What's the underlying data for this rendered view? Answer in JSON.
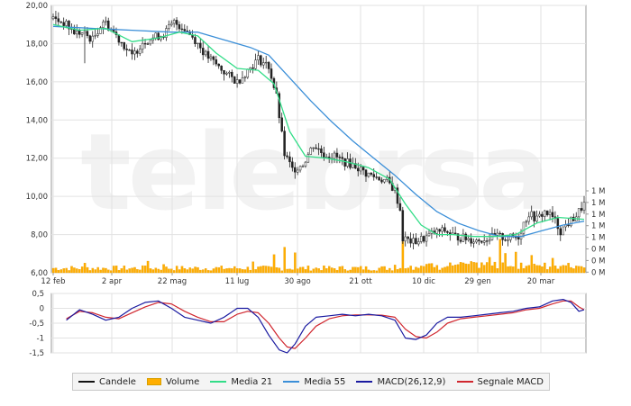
{
  "chart_data": [
    {
      "type": "candlestick",
      "title": "",
      "ylim": [
        6,
        20
      ],
      "yticks": [
        "20,00",
        "18,00",
        "16,00",
        "14,00",
        "12,00",
        "10,00",
        "8,00",
        "6,00"
      ],
      "xticks": [
        "12 feb",
        "2 apr",
        "22 mag",
        "11 lug",
        "30 ago",
        "21 ott",
        "10 dic",
        "29 gen",
        "20 mar"
      ],
      "volume_ticks": [
        "1 M",
        "1 M",
        "1 M",
        "1 M",
        "1 M",
        "0 M",
        "0 M",
        "0 M"
      ],
      "close_trend": [
        [
          0,
          19.3
        ],
        [
          4,
          19.1
        ],
        [
          8,
          18.6
        ],
        [
          12,
          18.5
        ],
        [
          15,
          18.2
        ],
        [
          19,
          19.2
        ],
        [
          23,
          18.6
        ],
        [
          27,
          17.9
        ],
        [
          30,
          17.3
        ],
        [
          34,
          18.1
        ],
        [
          38,
          18.3
        ],
        [
          42,
          18.5
        ],
        [
          46,
          19.1
        ],
        [
          50,
          18.8
        ],
        [
          54,
          18.2
        ],
        [
          58,
          17.4
        ],
        [
          62,
          16.9
        ],
        [
          66,
          16.4
        ],
        [
          70,
          16.0
        ],
        [
          74,
          16.6
        ],
        [
          78,
          17.2
        ],
        [
          82,
          16.8
        ],
        [
          85,
          15.2
        ],
        [
          88,
          12.2
        ],
        [
          91,
          11.4
        ],
        [
          95,
          11.7
        ],
        [
          99,
          12.7
        ],
        [
          103,
          12.2
        ],
        [
          107,
          12.1
        ],
        [
          111,
          11.8
        ],
        [
          115,
          11.6
        ],
        [
          119,
          11.2
        ],
        [
          123,
          11.0
        ],
        [
          127,
          10.8
        ],
        [
          130,
          10.3
        ],
        [
          132,
          9.3
        ],
        [
          133,
          7.8
        ],
        [
          137,
          7.6
        ],
        [
          141,
          7.8
        ],
        [
          145,
          8.1
        ],
        [
          149,
          8.2
        ],
        [
          153,
          7.9
        ],
        [
          157,
          7.8
        ],
        [
          161,
          7.7
        ],
        [
          165,
          7.8
        ],
        [
          169,
          7.9
        ],
        [
          173,
          7.8
        ],
        [
          177,
          7.9
        ],
        [
          179,
          8.6
        ],
        [
          181,
          9.1
        ],
        [
          184,
          8.8
        ],
        [
          187,
          9.2
        ],
        [
          190,
          8.9
        ],
        [
          193,
          8.2
        ],
        [
          196,
          8.6
        ],
        [
          199,
          9.0
        ],
        [
          202,
          9.6
        ]
      ],
      "media21": [
        [
          0,
          19.0
        ],
        [
          10,
          18.7
        ],
        [
          20,
          18.8
        ],
        [
          30,
          18.1
        ],
        [
          40,
          18.3
        ],
        [
          48,
          18.6
        ],
        [
          55,
          18.4
        ],
        [
          62,
          17.5
        ],
        [
          70,
          16.7
        ],
        [
          78,
          16.6
        ],
        [
          84,
          15.9
        ],
        [
          90,
          13.4
        ],
        [
          96,
          12.1
        ],
        [
          104,
          12.0
        ],
        [
          112,
          11.8
        ],
        [
          120,
          11.5
        ],
        [
          128,
          10.9
        ],
        [
          134,
          9.6
        ],
        [
          140,
          8.5
        ],
        [
          146,
          8.0
        ],
        [
          152,
          8.0
        ],
        [
          160,
          7.9
        ],
        [
          168,
          7.9
        ],
        [
          176,
          8.0
        ],
        [
          184,
          8.6
        ],
        [
          192,
          8.9
        ],
        [
          202,
          8.8
        ]
      ],
      "media55": [
        [
          0,
          18.9
        ],
        [
          15,
          18.8
        ],
        [
          30,
          18.7
        ],
        [
          45,
          18.6
        ],
        [
          55,
          18.6
        ],
        [
          65,
          18.2
        ],
        [
          75,
          17.8
        ],
        [
          82,
          17.4
        ],
        [
          90,
          16.2
        ],
        [
          98,
          15.0
        ],
        [
          106,
          13.9
        ],
        [
          114,
          12.9
        ],
        [
          122,
          12.0
        ],
        [
          130,
          11.1
        ],
        [
          138,
          10.1
        ],
        [
          146,
          9.2
        ],
        [
          154,
          8.6
        ],
        [
          162,
          8.2
        ],
        [
          170,
          7.9
        ],
        [
          178,
          7.9
        ],
        [
          186,
          8.2
        ],
        [
          194,
          8.5
        ],
        [
          202,
          8.7
        ]
      ],
      "volume_spikes": [
        [
          12,
          3
        ],
        [
          34,
          2.2
        ],
        [
          36,
          3.6
        ],
        [
          42,
          2.6
        ],
        [
          76,
          3.4
        ],
        [
          84,
          5.6
        ],
        [
          88,
          7.9
        ],
        [
          92,
          6.2
        ],
        [
          130,
          2.4
        ],
        [
          133,
          9.6
        ],
        [
          166,
          4.8
        ],
        [
          170,
          10.4
        ],
        [
          172,
          6.0
        ],
        [
          176,
          6.4
        ],
        [
          182,
          5.4
        ],
        [
          190,
          4.5
        ],
        [
          196,
          3.0
        ]
      ]
    },
    {
      "type": "line",
      "ylim": [
        -1.5,
        0.5
      ],
      "yticks": [
        "0,5",
        "0",
        "-0,5",
        "-1",
        "-1,5"
      ],
      "macd": [
        [
          5,
          -0.4
        ],
        [
          10,
          -0.05
        ],
        [
          15,
          -0.2
        ],
        [
          20,
          -0.4
        ],
        [
          25,
          -0.3
        ],
        [
          30,
          0.0
        ],
        [
          35,
          0.2
        ],
        [
          40,
          0.25
        ],
        [
          45,
          0.0
        ],
        [
          50,
          -0.3
        ],
        [
          55,
          -0.4
        ],
        [
          60,
          -0.5
        ],
        [
          65,
          -0.3
        ],
        [
          70,
          0.0
        ],
        [
          74,
          0.0
        ],
        [
          78,
          -0.3
        ],
        [
          82,
          -0.9
        ],
        [
          86,
          -1.4
        ],
        [
          89,
          -1.5
        ],
        [
          92,
          -1.2
        ],
        [
          96,
          -0.6
        ],
        [
          100,
          -0.3
        ],
        [
          105,
          -0.25
        ],
        [
          110,
          -0.2
        ],
        [
          115,
          -0.25
        ],
        [
          120,
          -0.2
        ],
        [
          125,
          -0.25
        ],
        [
          130,
          -0.4
        ],
        [
          134,
          -1.0
        ],
        [
          138,
          -1.05
        ],
        [
          142,
          -0.9
        ],
        [
          146,
          -0.5
        ],
        [
          150,
          -0.3
        ],
        [
          155,
          -0.3
        ],
        [
          160,
          -0.25
        ],
        [
          165,
          -0.2
        ],
        [
          170,
          -0.15
        ],
        [
          175,
          -0.1
        ],
        [
          180,
          0.0
        ],
        [
          185,
          0.05
        ],
        [
          190,
          0.25
        ],
        [
          194,
          0.3
        ],
        [
          197,
          0.2
        ],
        [
          200,
          -0.1
        ],
        [
          202,
          -0.05
        ]
      ],
      "signal": [
        [
          5,
          -0.35
        ],
        [
          10,
          -0.1
        ],
        [
          15,
          -0.15
        ],
        [
          20,
          -0.3
        ],
        [
          25,
          -0.35
        ],
        [
          30,
          -0.15
        ],
        [
          35,
          0.05
        ],
        [
          40,
          0.2
        ],
        [
          45,
          0.15
        ],
        [
          50,
          -0.1
        ],
        [
          55,
          -0.3
        ],
        [
          60,
          -0.45
        ],
        [
          65,
          -0.45
        ],
        [
          70,
          -0.2
        ],
        [
          74,
          -0.1
        ],
        [
          78,
          -0.15
        ],
        [
          82,
          -0.5
        ],
        [
          86,
          -1.0
        ],
        [
          89,
          -1.3
        ],
        [
          92,
          -1.35
        ],
        [
          96,
          -1.0
        ],
        [
          100,
          -0.6
        ],
        [
          105,
          -0.35
        ],
        [
          110,
          -0.25
        ],
        [
          115,
          -0.22
        ],
        [
          120,
          -0.22
        ],
        [
          125,
          -0.23
        ],
        [
          130,
          -0.3
        ],
        [
          134,
          -0.7
        ],
        [
          138,
          -0.95
        ],
        [
          142,
          -1.0
        ],
        [
          146,
          -0.8
        ],
        [
          150,
          -0.5
        ],
        [
          155,
          -0.35
        ],
        [
          160,
          -0.3
        ],
        [
          165,
          -0.25
        ],
        [
          170,
          -0.2
        ],
        [
          175,
          -0.15
        ],
        [
          180,
          -0.05
        ],
        [
          185,
          0.0
        ],
        [
          190,
          0.15
        ],
        [
          194,
          0.25
        ],
        [
          197,
          0.25
        ],
        [
          200,
          0.05
        ],
        [
          202,
          -0.05
        ]
      ]
    }
  ],
  "legend": [
    {
      "label": "Candele",
      "color": "#111111",
      "kind": "line"
    },
    {
      "label": "Volume",
      "color": "#ffae00",
      "kind": "box"
    },
    {
      "label": "Media 21",
      "color": "#33dd88",
      "kind": "line"
    },
    {
      "label": "Media 55",
      "color": "#3b8fd8",
      "kind": "line"
    },
    {
      "label": "MACD(26,12,9)",
      "color": "#1a1aa0",
      "kind": "line"
    },
    {
      "label": "Segnale MACD",
      "color": "#d0262e",
      "kind": "line"
    }
  ],
  "watermark": "telebrsa"
}
